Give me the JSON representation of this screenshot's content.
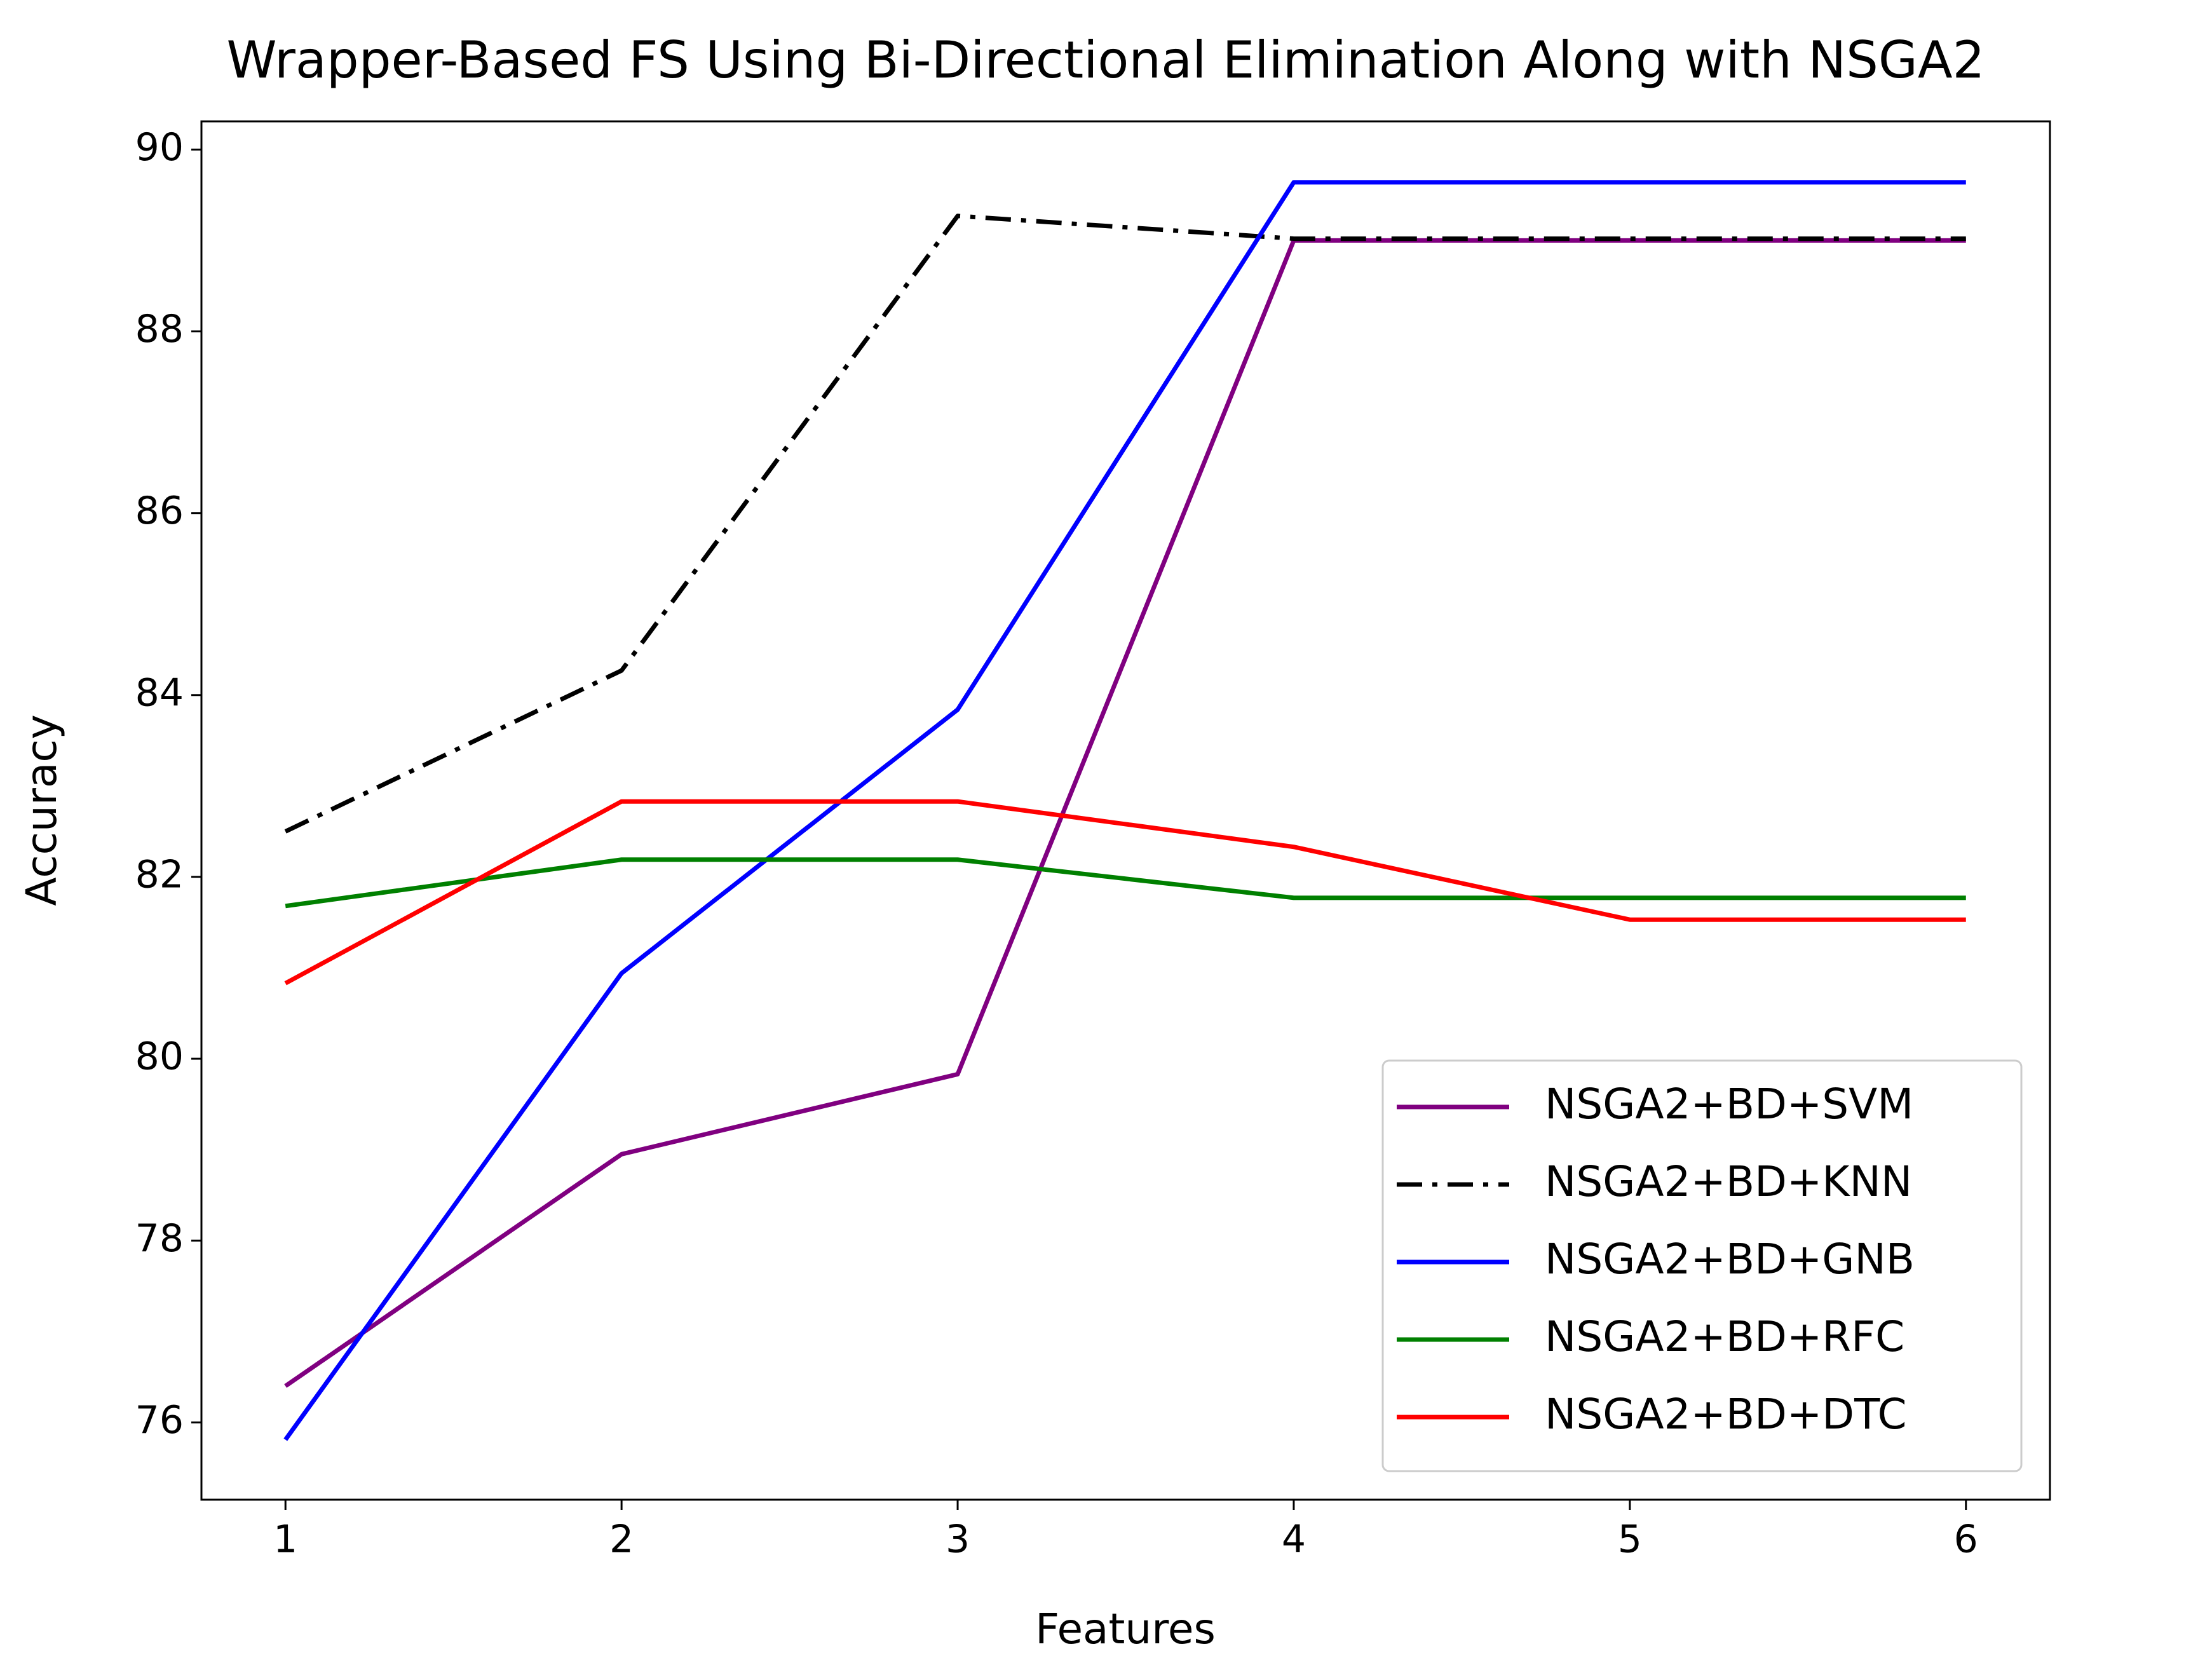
{
  "chart_data": {
    "type": "line",
    "title": "Wrapper-Based FS Using Bi-Directional Elimination Along with NSGA2",
    "xlabel": "Features",
    "ylabel": "Accuracy",
    "x": [
      1,
      2,
      3,
      4,
      5,
      6
    ],
    "series": [
      {
        "name": "NSGA2+BD+SVM",
        "color": "#800080",
        "style": "solid",
        "values": [
          76.4,
          78.95,
          79.83,
          89.0,
          89.0,
          89.0
        ]
      },
      {
        "name": "NSGA2+BD+KNN",
        "color": "#000000",
        "style": "dashdot",
        "values": [
          82.5,
          84.27,
          89.27,
          89.02,
          89.02,
          89.02
        ]
      },
      {
        "name": "NSGA2+BD+GNB",
        "color": "#0000ff",
        "style": "solid",
        "values": [
          75.81,
          80.94,
          83.84,
          89.64,
          89.64,
          89.64
        ]
      },
      {
        "name": "NSGA2+BD+RFC",
        "color": "#008000",
        "style": "solid",
        "values": [
          81.68,
          82.19,
          82.19,
          81.77,
          81.77,
          81.77
        ]
      },
      {
        "name": "NSGA2+BD+DTC",
        "color": "#ff0000",
        "style": "solid",
        "values": [
          80.83,
          82.83,
          82.83,
          82.33,
          81.53,
          81.53
        ]
      }
    ],
    "xlim": [
      0.75,
      6.25
    ],
    "xticks": [
      1,
      2,
      3,
      4,
      5,
      6
    ],
    "ylim": [
      75.15,
      90.31
    ],
    "yticks": [
      76,
      78,
      80,
      82,
      84,
      86,
      88,
      90
    ],
    "legend": "lower right"
  }
}
